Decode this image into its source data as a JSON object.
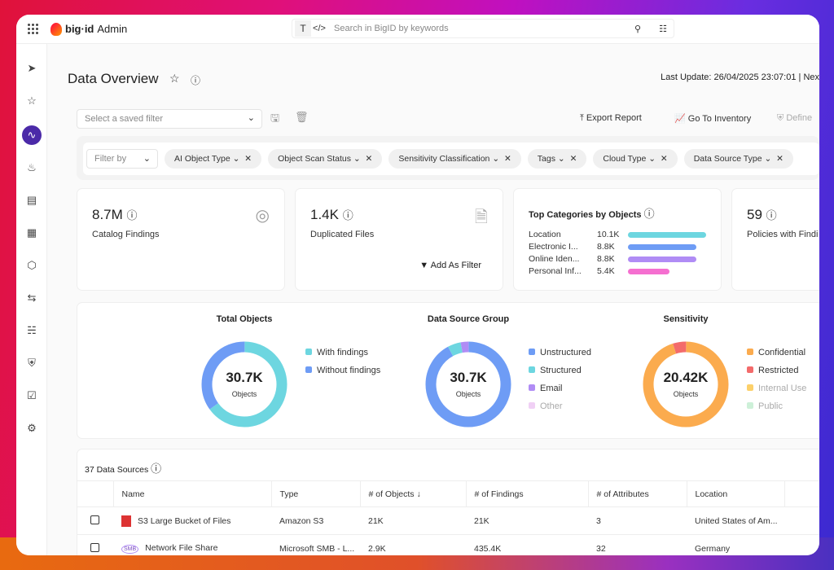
{
  "app": {
    "brand": "big·id",
    "title": "Admin"
  },
  "search": {
    "placeholder": "Search in BigID by keywords",
    "mode_text": "T",
    "mode_code": "</>"
  },
  "page": {
    "title": "Data Overview",
    "last_update": "Last Update: 26/04/2025 23:07:01 | Nex"
  },
  "toolbar": {
    "saved_filter_placeholder": "Select a saved filter",
    "export": "Export Report",
    "inventory": "Go To Inventory",
    "define": "Define"
  },
  "filters": {
    "filter_by": "Filter by",
    "chips": [
      "AI Object Type",
      "Object Scan Status",
      "Sensitivity Classification",
      "Tags",
      "Cloud Type",
      "Data Source Type"
    ]
  },
  "cards": {
    "catalog": {
      "value": "8.7M",
      "label": "Catalog Findings"
    },
    "duplicated": {
      "value": "1.4K",
      "label": "Duplicated Files",
      "action": "Add As Filter"
    },
    "top_categories": {
      "title": "Top Categories by Objects",
      "items": [
        {
          "name": "Location",
          "value": "10.1K",
          "num": 10.1,
          "color": "#6dd6e0"
        },
        {
          "name": "Electronic I...",
          "value": "8.8K",
          "num": 8.8,
          "color": "#6e9cf5"
        },
        {
          "name": "Online Iden...",
          "value": "8.8K",
          "num": 8.8,
          "color": "#b08cf5"
        },
        {
          "name": "Personal Inf...",
          "value": "5.4K",
          "num": 5.4,
          "color": "#f56fd0"
        }
      ]
    },
    "policies": {
      "value": "59",
      "label": "Policies with Findi"
    }
  },
  "chart_data": [
    {
      "type": "pie",
      "title": "Total Objects",
      "center_value": "30.7K",
      "center_label": "Objects",
      "series": [
        {
          "name": "With findings",
          "value": 65,
          "color": "#6dd6e0"
        },
        {
          "name": "Without findings",
          "value": 35,
          "color": "#6e9cf5"
        }
      ]
    },
    {
      "type": "pie",
      "title": "Data Source Group",
      "center_value": "30.7K",
      "center_label": "Objects",
      "series": [
        {
          "name": "Unstructured",
          "value": 92,
          "color": "#6e9cf5"
        },
        {
          "name": "Structured",
          "value": 5,
          "color": "#6dd6e0"
        },
        {
          "name": "Email",
          "value": 3,
          "color": "#b08cf5"
        },
        {
          "name": "Other",
          "value": 0,
          "color": "#f0d0f5"
        }
      ]
    },
    {
      "type": "pie",
      "title": "Sensitivity",
      "center_value": "20.42K",
      "center_label": "Objects",
      "series": [
        {
          "name": "Confidential",
          "value": 95,
          "color": "#fbab4e"
        },
        {
          "name": "Restricted",
          "value": 5,
          "color": "#f36b6b"
        },
        {
          "name": "Internal Use",
          "value": 0,
          "color": "#fcd06a"
        },
        {
          "name": "Public",
          "value": 0,
          "color": "#cdf0d8"
        }
      ]
    }
  ],
  "table": {
    "count_label": "37 Data Sources",
    "columns": [
      "Name",
      "Type",
      "# of Objects",
      "# of Findings",
      "# of Attributes",
      "Location"
    ],
    "rows": [
      {
        "name": "S3 Large Bucket of Files",
        "type": "Amazon S3",
        "objects": "21K",
        "findings": "21K",
        "attributes": "3",
        "location": "United States of Am..."
      },
      {
        "name": "Network File Share",
        "type": "Microsoft SMB - L...",
        "objects": "2.9K",
        "findings": "435.4K",
        "attributes": "32",
        "location": "Germany"
      }
    ]
  }
}
